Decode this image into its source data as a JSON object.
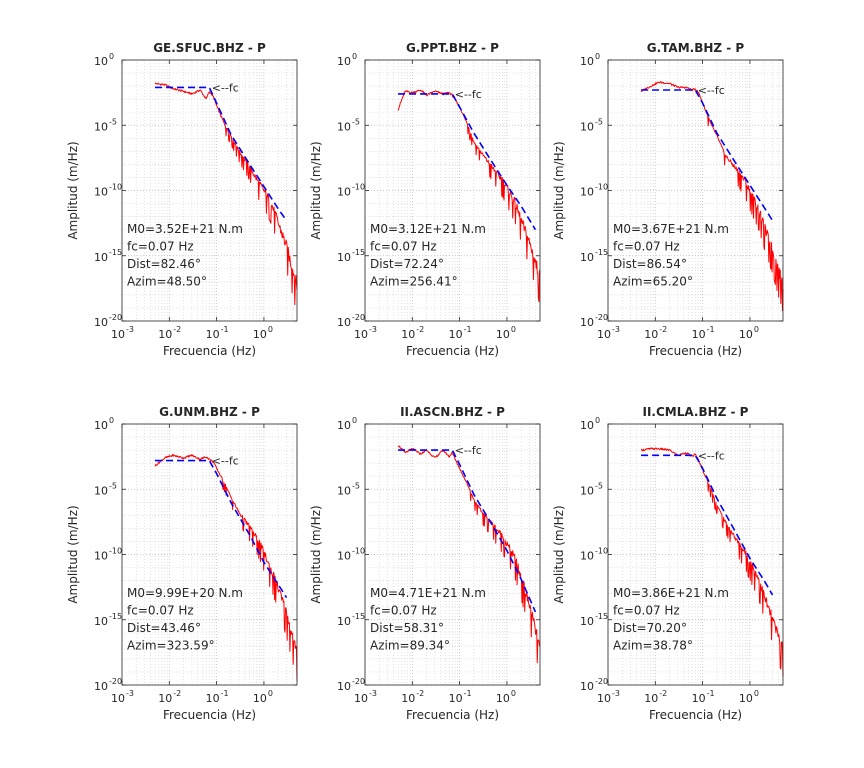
{
  "figure": {
    "background": "#ffffff",
    "observed_color": "#ff0000",
    "model_color": "#0000ff",
    "axis_color": "#262626"
  },
  "chart_data": [
    {
      "type": "line",
      "title": "GE.SFUC.BHZ - P",
      "xlabel": "Frecuencia (Hz)",
      "ylabel": "Amplitud (m/Hz)",
      "xscale": "log",
      "yscale": "log",
      "xlim": [
        0.001,
        5
      ],
      "ylim": [
        1e-20,
        1
      ],
      "xticks": [
        "10",
        "10",
        "10",
        "10"
      ],
      "xtick_exponents": [
        "-3",
        "-2",
        "-1",
        "0"
      ],
      "yticks": [
        "10",
        "10",
        "10",
        "10",
        "10"
      ],
      "ytick_exponents": [
        "-20",
        "-15",
        "-10",
        "-5",
        "0"
      ],
      "grid": true,
      "fc_marker": "<--fc",
      "annotations": [
        "M0=3.52E+21 N.m",
        "fc=0.07 Hz",
        "Dist=82.46°",
        "Azim=48.50°"
      ],
      "series": [
        {
          "role": "observed",
          "x": [
            0.005,
            0.008,
            0.012,
            0.02,
            0.03,
            0.045,
            0.06,
            0.07,
            0.085,
            0.1,
            0.15,
            0.2,
            0.3,
            0.5,
            0.8,
            1,
            1.5,
            2,
            3,
            5
          ],
          "y_log10": [
            -1.8,
            -1.9,
            -2.2,
            -2.4,
            -2.6,
            -2.3,
            -3.0,
            -2.4,
            -2.8,
            -3.5,
            -5.0,
            -5.8,
            -7.0,
            -8.2,
            -9.5,
            -10.0,
            -11.2,
            -12.5,
            -14.3,
            -17.3
          ]
        },
        {
          "role": "model",
          "x": [
            0.005,
            0.07,
            0.1,
            0.2,
            0.5,
            1,
            2,
            3
          ],
          "y_log10": [
            -2.1,
            -2.1,
            -3.3,
            -5.7,
            -8.0,
            -9.7,
            -11.4,
            -12.3
          ]
        }
      ]
    },
    {
      "type": "line",
      "title": "G.PPT.BHZ - P",
      "xlabel": "Frecuencia (Hz)",
      "ylabel": "Amplitud (m/Hz)",
      "xscale": "log",
      "yscale": "log",
      "xlim": [
        0.001,
        5
      ],
      "ylim": [
        1e-20,
        1
      ],
      "xticks": [
        "10",
        "10",
        "10",
        "10"
      ],
      "xtick_exponents": [
        "-3",
        "-2",
        "-1",
        "0"
      ],
      "yticks": [
        "10",
        "10",
        "10",
        "10",
        "10"
      ],
      "ytick_exponents": [
        "-20",
        "-15",
        "-10",
        "-5",
        "0"
      ],
      "grid": true,
      "fc_marker": "<--fc",
      "annotations": [
        "M0=3.12E+21 N.m",
        "fc=0.07 Hz",
        "Dist=72.24°",
        "Azim=256.41°"
      ],
      "series": [
        {
          "role": "observed",
          "x": [
            0.005,
            0.007,
            0.01,
            0.015,
            0.02,
            0.03,
            0.045,
            0.06,
            0.07,
            0.1,
            0.15,
            0.2,
            0.3,
            0.5,
            0.8,
            1,
            1.5,
            2,
            3,
            5
          ],
          "y_log10": [
            -3.8,
            -2.4,
            -2.5,
            -2.3,
            -2.7,
            -2.4,
            -2.6,
            -2.5,
            -2.7,
            -3.6,
            -5.0,
            -6.3,
            -7.2,
            -8.3,
            -9.2,
            -9.8,
            -11.0,
            -12.3,
            -14.0,
            -16.7
          ]
        },
        {
          "role": "model",
          "x": [
            0.005,
            0.07,
            0.1,
            0.2,
            0.5,
            1,
            2,
            4
          ],
          "y_log10": [
            -2.6,
            -2.6,
            -3.6,
            -5.6,
            -7.9,
            -9.6,
            -11.2,
            -13.0
          ]
        }
      ]
    },
    {
      "type": "line",
      "title": "G.TAM.BHZ - P",
      "xlabel": "Frecuencia (Hz)",
      "ylabel": "Amplitud (m/Hz)",
      "xscale": "log",
      "yscale": "log",
      "xlim": [
        0.001,
        5
      ],
      "ylim": [
        1e-20,
        1
      ],
      "xticks": [
        "10",
        "10",
        "10",
        "10"
      ],
      "xtick_exponents": [
        "-3",
        "-2",
        "-1",
        "0"
      ],
      "yticks": [
        "10",
        "10",
        "10",
        "10",
        "10"
      ],
      "ytick_exponents": [
        "-20",
        "-15",
        "-10",
        "-5",
        "0"
      ],
      "grid": true,
      "fc_marker": "<--fc",
      "annotations": [
        "M0=3.67E+21 N.m",
        "fc=0.07 Hz",
        "Dist=86.54°",
        "Azim=65.20°"
      ],
      "series": [
        {
          "role": "observed",
          "x": [
            0.005,
            0.008,
            0.012,
            0.02,
            0.03,
            0.045,
            0.06,
            0.07,
            0.085,
            0.1,
            0.15,
            0.2,
            0.3,
            0.5,
            0.8,
            1,
            1.5,
            2,
            3,
            5
          ],
          "y_log10": [
            -2.4,
            -2.0,
            -1.7,
            -1.8,
            -2.1,
            -2.1,
            -2.3,
            -2.2,
            -2.6,
            -3.3,
            -4.9,
            -5.8,
            -7.3,
            -8.3,
            -9.3,
            -10.1,
            -11.4,
            -12.8,
            -14.6,
            -17.3
          ]
        },
        {
          "role": "model",
          "x": [
            0.005,
            0.07,
            0.1,
            0.2,
            0.5,
            1,
            2,
            3
          ],
          "y_log10": [
            -2.3,
            -2.3,
            -3.3,
            -5.6,
            -7.9,
            -9.6,
            -11.3,
            -12.3
          ]
        }
      ]
    },
    {
      "type": "line",
      "title": "G.UNM.BHZ - P",
      "xlabel": "Frecuencia (Hz)",
      "ylabel": "Amplitud (m/Hz)",
      "xscale": "log",
      "yscale": "log",
      "xlim": [
        0.001,
        5
      ],
      "ylim": [
        1e-20,
        1
      ],
      "xticks": [
        "10",
        "10",
        "10",
        "10"
      ],
      "xtick_exponents": [
        "-3",
        "-2",
        "-1",
        "0"
      ],
      "yticks": [
        "10",
        "10",
        "10",
        "10",
        "10"
      ],
      "ytick_exponents": [
        "-20",
        "-15",
        "-10",
        "-5",
        "0"
      ],
      "grid": true,
      "fc_marker": "<--fc",
      "annotations": [
        "M0=9.99E+20 N.m",
        "fc=0.07 Hz",
        "Dist=43.46°",
        "Azim=323.59°"
      ],
      "series": [
        {
          "role": "observed",
          "x": [
            0.005,
            0.008,
            0.012,
            0.02,
            0.03,
            0.045,
            0.06,
            0.07,
            0.085,
            0.1,
            0.15,
            0.2,
            0.3,
            0.5,
            0.8,
            1,
            1.5,
            2,
            3,
            5
          ],
          "y_log10": [
            -3.2,
            -2.6,
            -2.4,
            -2.6,
            -2.4,
            -2.7,
            -2.5,
            -2.7,
            -2.9,
            -3.4,
            -4.6,
            -5.6,
            -6.8,
            -7.9,
            -9.1,
            -9.9,
            -11.4,
            -12.6,
            -14.5,
            -17.7
          ]
        },
        {
          "role": "model",
          "x": [
            0.005,
            0.07,
            0.1,
            0.2,
            0.5,
            1,
            2,
            3
          ],
          "y_log10": [
            -2.8,
            -2.8,
            -3.8,
            -6.0,
            -8.5,
            -10.6,
            -12.3,
            -13.3
          ]
        }
      ]
    },
    {
      "type": "line",
      "title": "II.ASCN.BHZ - P",
      "xlabel": "Frecuencia (Hz)",
      "ylabel": "Amplitud (m/Hz)",
      "xscale": "log",
      "yscale": "log",
      "xlim": [
        0.001,
        5
      ],
      "ylim": [
        1e-20,
        1
      ],
      "xticks": [
        "10",
        "10",
        "10",
        "10"
      ],
      "xtick_exponents": [
        "-3",
        "-2",
        "-1",
        "0"
      ],
      "yticks": [
        "10",
        "10",
        "10",
        "10",
        "10"
      ],
      "ytick_exponents": [
        "-20",
        "-15",
        "-10",
        "-5",
        "0"
      ],
      "grid": true,
      "fc_marker": "<--fc",
      "annotations": [
        "M0=4.71E+21 N.m",
        "fc=0.07 Hz",
        "Dist=58.31°",
        "Azim=89.34°"
      ],
      "series": [
        {
          "role": "observed",
          "x": [
            0.005,
            0.007,
            0.01,
            0.015,
            0.02,
            0.03,
            0.045,
            0.06,
            0.07,
            0.1,
            0.15,
            0.2,
            0.3,
            0.5,
            0.8,
            1,
            1.5,
            2,
            3,
            5
          ],
          "y_log10": [
            -1.6,
            -2.2,
            -1.9,
            -2.3,
            -2.0,
            -2.6,
            -2.0,
            -2.5,
            -2.2,
            -3.4,
            -4.7,
            -5.8,
            -6.8,
            -7.7,
            -8.6,
            -9.2,
            -10.4,
            -11.8,
            -13.9,
            -17.3
          ]
        },
        {
          "role": "model",
          "x": [
            0.005,
            0.07,
            0.1,
            0.2,
            0.5,
            1,
            2,
            4
          ],
          "y_log10": [
            -2.0,
            -2.0,
            -3.1,
            -5.4,
            -7.8,
            -9.7,
            -11.9,
            -14.4
          ]
        }
      ]
    },
    {
      "type": "line",
      "title": "II.CMLA.BHZ - P",
      "xlabel": "Frecuencia (Hz)",
      "ylabel": "Amplitud (m/Hz)",
      "xscale": "log",
      "yscale": "log",
      "xlim": [
        0.001,
        5
      ],
      "ylim": [
        1e-20,
        1
      ],
      "xticks": [
        "10",
        "10",
        "10",
        "10"
      ],
      "xtick_exponents": [
        "-3",
        "-2",
        "-1",
        "0"
      ],
      "yticks": [
        "10",
        "10",
        "10",
        "10",
        "10"
      ],
      "ytick_exponents": [
        "-20",
        "-15",
        "-10",
        "-5",
        "0"
      ],
      "grid": true,
      "fc_marker": "<--fc",
      "annotations": [
        "M0=3.86E+21 N.m",
        "fc=0.07 Hz",
        "Dist=70.20°",
        "Azim=38.78°"
      ],
      "series": [
        {
          "role": "observed",
          "x": [
            0.005,
            0.008,
            0.012,
            0.02,
            0.03,
            0.045,
            0.06,
            0.07,
            0.085,
            0.1,
            0.15,
            0.2,
            0.3,
            0.5,
            0.8,
            1,
            1.5,
            2,
            3,
            5
          ],
          "y_log10": [
            -2.0,
            -1.9,
            -1.9,
            -2.0,
            -2.4,
            -2.2,
            -2.5,
            -2.3,
            -2.9,
            -3.5,
            -5.0,
            -6.2,
            -7.5,
            -8.8,
            -9.9,
            -10.6,
            -11.8,
            -13.2,
            -15.0,
            -17.3
          ]
        },
        {
          "role": "model",
          "x": [
            0.005,
            0.07,
            0.1,
            0.2,
            0.5,
            1,
            2,
            3
          ],
          "y_log10": [
            -2.4,
            -2.4,
            -3.4,
            -5.7,
            -8.3,
            -10.3,
            -12.0,
            -13.1
          ]
        }
      ]
    }
  ]
}
